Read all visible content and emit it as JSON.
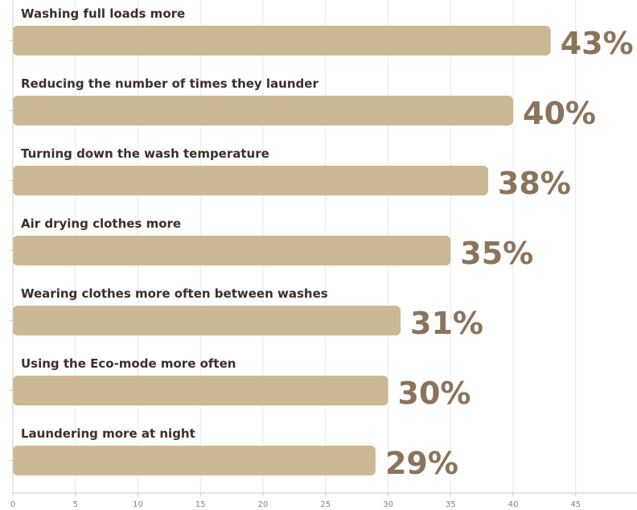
{
  "colors": {
    "bar": "#cbb894",
    "value_label": "#8b735c",
    "category_label": "#3d2e2a",
    "grid": "#e9e9ee",
    "axis": "#c9ccd4",
    "tick_label": "#7b8594"
  },
  "chart_data": {
    "type": "bar",
    "orientation": "horizontal",
    "categories": [
      "Washing full loads more",
      "Reducing the number of times they launder",
      "Turning down the wash temperature",
      "Air drying clothes more",
      "Wearing clothes more often between washes",
      "Using the Eco-mode more often",
      "Laundering more at night"
    ],
    "values": [
      43,
      40,
      38,
      35,
      31,
      30,
      29
    ],
    "value_labels": [
      "43%",
      "40%",
      "38%",
      "35%",
      "31%",
      "30%",
      "29%"
    ],
    "x_ticks": [
      0,
      5,
      10,
      15,
      20,
      25,
      30,
      35,
      40,
      45
    ],
    "tick_labels": [
      "0",
      "5",
      "10",
      "15",
      "20",
      "25",
      "30",
      "35",
      "40",
      "45"
    ],
    "xlim": [
      0,
      50
    ],
    "grid": true,
    "legend": "none"
  }
}
